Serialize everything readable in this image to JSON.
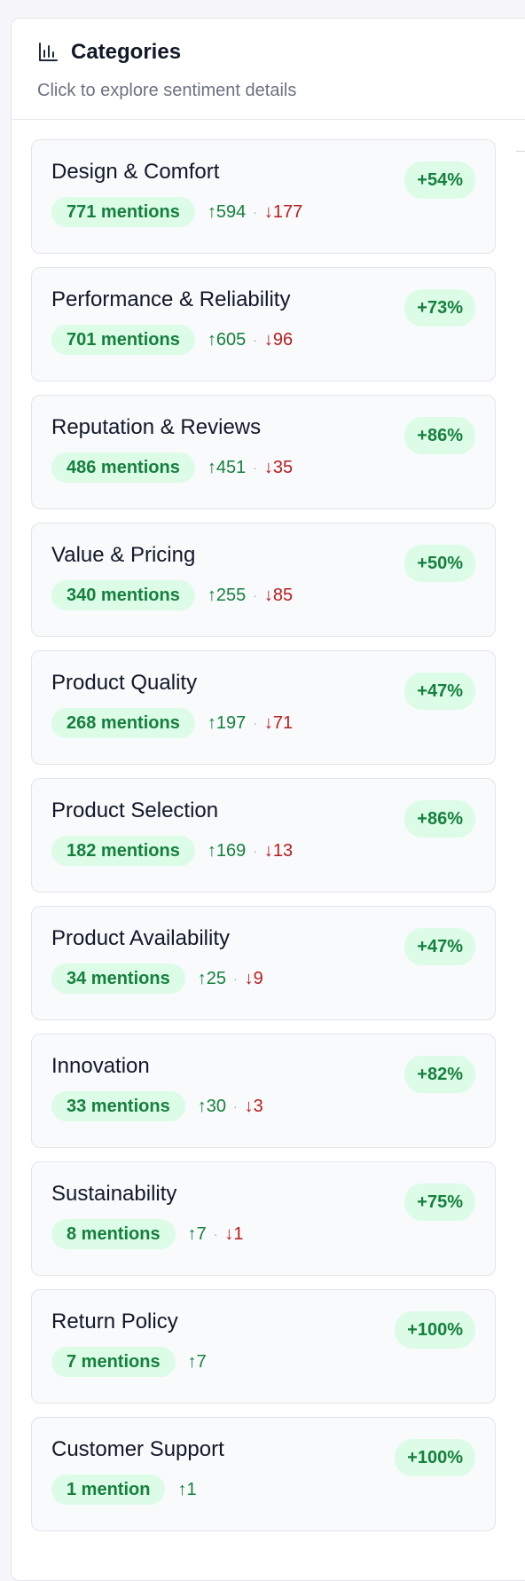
{
  "header": {
    "title": "Categories",
    "subtitle": "Click to explore sentiment details"
  },
  "categories": [
    {
      "name": "Design & Comfort",
      "mentions": "771 mentions",
      "up": "↑594",
      "down": "↓177",
      "sentiment": "+54%"
    },
    {
      "name": "Performance & Reliability",
      "mentions": "701 mentions",
      "up": "↑605",
      "down": "↓96",
      "sentiment": "+73%"
    },
    {
      "name": "Reputation & Reviews",
      "mentions": "486 mentions",
      "up": "↑451",
      "down": "↓35",
      "sentiment": "+86%"
    },
    {
      "name": "Value & Pricing",
      "mentions": "340 mentions",
      "up": "↑255",
      "down": "↓85",
      "sentiment": "+50%"
    },
    {
      "name": "Product Quality",
      "mentions": "268 mentions",
      "up": "↑197",
      "down": "↓71",
      "sentiment": "+47%"
    },
    {
      "name": "Product Selection",
      "mentions": "182 mentions",
      "up": "↑169",
      "down": "↓13",
      "sentiment": "+86%"
    },
    {
      "name": "Product Availability",
      "mentions": "34 mentions",
      "up": "↑25",
      "down": "↓9",
      "sentiment": "+47%"
    },
    {
      "name": "Innovation",
      "mentions": "33 mentions",
      "up": "↑30",
      "down": "↓3",
      "sentiment": "+82%"
    },
    {
      "name": "Sustainability",
      "mentions": "8 mentions",
      "up": "↑7",
      "down": "↓1",
      "sentiment": "+75%"
    },
    {
      "name": "Return Policy",
      "mentions": "7 mentions",
      "up": "↑7",
      "down": "",
      "sentiment": "+100%"
    },
    {
      "name": "Customer Support",
      "mentions": "1 mention",
      "up": "↑1",
      "down": "",
      "sentiment": "+100%"
    }
  ],
  "icons": {
    "header": "bar-chart-icon"
  },
  "colors": {
    "positive": "#15803d",
    "positive_bg": "#dcfce7",
    "negative": "#b91c1c",
    "card_bg": "#f8fafc"
  }
}
